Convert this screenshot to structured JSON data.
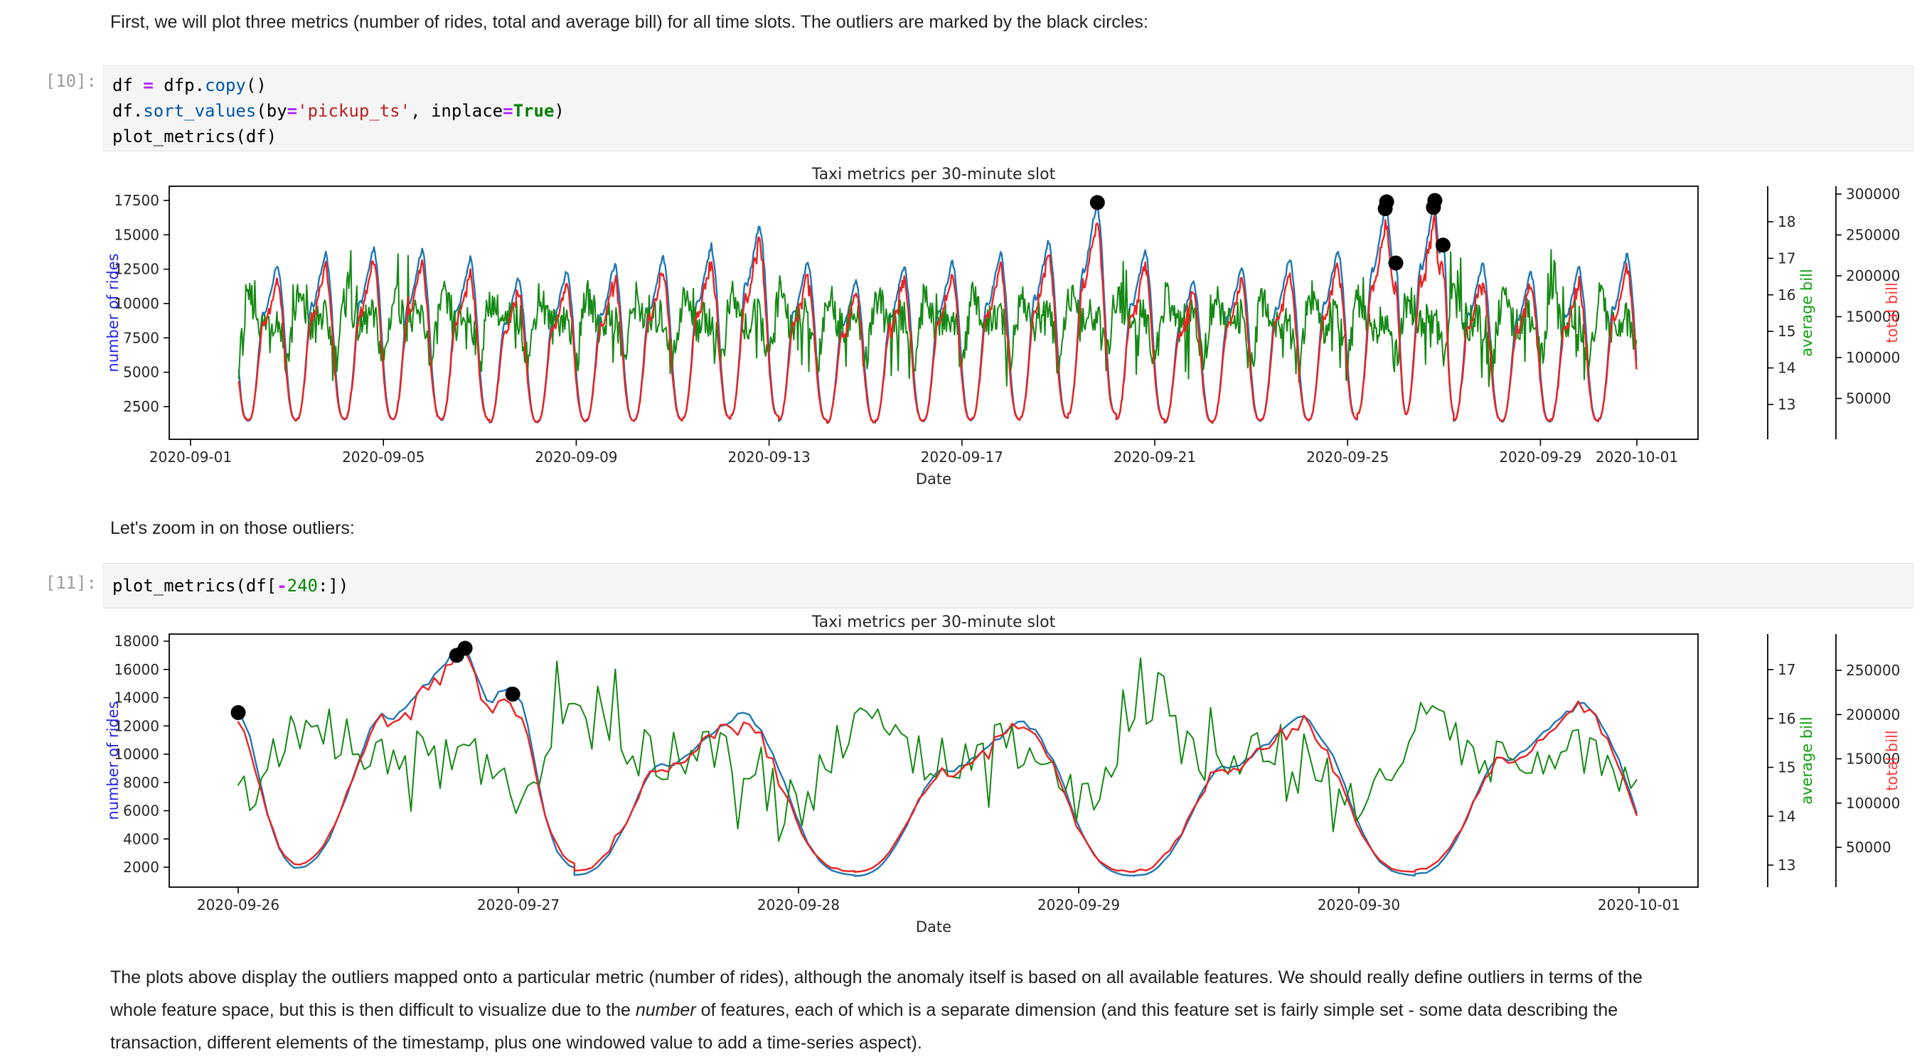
{
  "notebook": {
    "md_intro": "First, we will plot three metrics (number of rides, total and average bill) for all time slots. The outliers are marked by the black circles:",
    "md_zoom": "Let's zoom in on those outliers:",
    "outro": {
      "l1": "The plots above display the outliers mapped onto a particular metric (number of rides), although the anomaly itself is based on all available features. We should really define outliers in terms of the",
      "l2a": "whole feature space, but this is then difficult to visualize due to the ",
      "l2i": "number",
      "l2b": " of features, each of which is a separate dimension (and this feature set is fairly simple set - some data describing the",
      "l3": "transaction, different elements of the timestamp, plus one windowed value to add a time-series aspect)."
    },
    "cells": [
      {
        "prompt": "[10]:",
        "lines": [
          [
            [
              "n",
              "df"
            ],
            [
              "pu",
              " "
            ],
            [
              "op",
              "="
            ],
            [
              "pu",
              " "
            ],
            [
              "n",
              "dfp"
            ],
            [
              "pu",
              "."
            ],
            [
              "pr",
              "copy"
            ],
            [
              "pu",
              "()"
            ]
          ],
          [
            [
              "n",
              "df"
            ],
            [
              "pu",
              "."
            ],
            [
              "pr",
              "sort_values"
            ],
            [
              "pu",
              "("
            ],
            [
              "n",
              "by"
            ],
            [
              "op",
              "="
            ],
            [
              "st",
              "'pickup_ts'"
            ],
            [
              "pu",
              ", "
            ],
            [
              "n",
              "inplace"
            ],
            [
              "op",
              "="
            ],
            [
              "kw",
              "True"
            ],
            [
              "pu",
              ")"
            ]
          ],
          [
            [
              "n",
              "plot_metrics"
            ],
            [
              "pu",
              "("
            ],
            [
              "n",
              "df"
            ],
            [
              "pu",
              ")"
            ]
          ]
        ]
      },
      {
        "prompt": "[11]:",
        "lines": [
          [
            [
              "n",
              "plot_metrics"
            ],
            [
              "pu",
              "("
            ],
            [
              "n",
              "df"
            ],
            [
              "pu",
              "["
            ],
            [
              "op",
              "-"
            ],
            [
              "nu",
              "240"
            ],
            [
              "pu",
              ":])"
            ]
          ]
        ]
      }
    ]
  },
  "chart_data": [
    {
      "type": "line",
      "title": "Taxi metrics per 30-minute slot",
      "xlabel": "Date",
      "legend_position": "none",
      "grid": false,
      "x_ticks": [
        {
          "label": "2020-09-01",
          "day": 1
        },
        {
          "label": "2020-09-05",
          "day": 5
        },
        {
          "label": "2020-09-09",
          "day": 9
        },
        {
          "label": "2020-09-13",
          "day": 13
        },
        {
          "label": "2020-09-17",
          "day": 17
        },
        {
          "label": "2020-09-21",
          "day": 21
        },
        {
          "label": "2020-09-25",
          "day": 25
        },
        {
          "label": "2020-09-29",
          "day": 29
        },
        {
          "label": "2020-10-01",
          "day": 31
        }
      ],
      "axes": {
        "rides": {
          "label": "number of rides",
          "line_color": "#1f77b4",
          "label_color": "#2424ee",
          "ticks": [
            2500,
            5000,
            7500,
            10000,
            12500,
            15000,
            17500
          ],
          "range": [
            1000,
            18600
          ]
        },
        "avg": {
          "label": "average bill",
          "line_color": "#158915",
          "label_color": "#0da10d",
          "ticks": [
            13,
            14,
            15,
            16,
            17,
            18
          ],
          "range": [
            12.5,
            18.5
          ]
        },
        "total": {
          "label": "total bill",
          "line_color": "#ee2222",
          "label_color": "#ff3b3b",
          "ticks": [
            50000,
            100000,
            150000,
            200000,
            250000,
            300000
          ],
          "range": [
            10000,
            310000
          ]
        }
      },
      "window_days": [
        2,
        31
      ],
      "outliers_day_value": [
        [
          19.81,
          17350
        ],
        [
          25.78,
          16900
        ],
        [
          25.81,
          17400
        ],
        [
          26.0,
          12950
        ],
        [
          26.78,
          17000
        ],
        [
          26.81,
          17500
        ],
        [
          26.98,
          14250
        ]
      ]
    },
    {
      "type": "line",
      "title": "Taxi metrics per 30-minute slot",
      "xlabel": "Date",
      "legend_position": "none",
      "grid": false,
      "x_ticks": [
        {
          "label": "2020-09-26",
          "day": 26
        },
        {
          "label": "2020-09-27",
          "day": 27
        },
        {
          "label": "2020-09-28",
          "day": 28
        },
        {
          "label": "2020-09-29",
          "day": 29
        },
        {
          "label": "2020-09-30",
          "day": 30
        },
        {
          "label": "2020-10-01",
          "day": 31
        }
      ],
      "axes": {
        "rides": {
          "label": "number of rides",
          "line_color": "#1f77b4",
          "label_color": "#2424ee",
          "ticks": [
            2000,
            4000,
            6000,
            8000,
            10000,
            12000,
            14000,
            16000,
            18000
          ],
          "range": [
            800,
            18800
          ]
        },
        "avg": {
          "label": "average bill",
          "line_color": "#158915",
          "label_color": "#0da10d",
          "ticks": [
            13,
            14,
            15,
            16,
            17
          ],
          "range": [
            12.6,
            17.7
          ]
        },
        "total": {
          "label": "total bill",
          "line_color": "#ee2222",
          "label_color": "#ff3b3b",
          "ticks": [
            50000,
            100000,
            150000,
            200000,
            250000
          ],
          "range": [
            8000,
            272000
          ]
        }
      },
      "window_days": [
        26,
        31
      ],
      "outliers_day_value": [
        [
          26.0,
          12950
        ],
        [
          26.78,
          17000
        ],
        [
          26.81,
          17500
        ],
        [
          26.98,
          14250
        ]
      ]
    }
  ],
  "series_model": {
    "description": "Three series per chart: number of rides (blue, left axis), average bill (green, right axis 1), total bill = rides x average bill (red, right axis 2). 30-minute slots.",
    "slot_per_day": 48,
    "first_peak_date": "2020-09-02",
    "rides_daily_peaks": [
      12900,
      13700,
      14100,
      14000,
      13300,
      11800,
      12400,
      12900,
      13400,
      14200,
      15800,
      13100,
      11600,
      12700,
      13100,
      13700,
      14600,
      17350,
      13900,
      11700,
      12700,
      13300,
      13900,
      17400,
      17500,
      12900,
      12300,
      12600,
      13600
    ],
    "rides_day_profile": [
      [
        0.0,
        0.4
      ],
      [
        0.04,
        0.27
      ],
      [
        0.08,
        0.18
      ],
      [
        0.12,
        0.135
      ],
      [
        0.16,
        0.118
      ],
      [
        0.2,
        0.112
      ],
      [
        0.24,
        0.118
      ],
      [
        0.28,
        0.15
      ],
      [
        0.33,
        0.24
      ],
      [
        0.38,
        0.38
      ],
      [
        0.42,
        0.52
      ],
      [
        0.46,
        0.64
      ],
      [
        0.5,
        0.73
      ],
      [
        0.54,
        0.71
      ],
      [
        0.58,
        0.74
      ],
      [
        0.62,
        0.79
      ],
      [
        0.66,
        0.84
      ],
      [
        0.7,
        0.89
      ],
      [
        0.74,
        0.94
      ],
      [
        0.78,
        0.985
      ],
      [
        0.81,
        1.0
      ],
      [
        0.84,
        0.955
      ],
      [
        0.88,
        0.86
      ],
      [
        0.92,
        0.74
      ],
      [
        0.96,
        0.57
      ],
      [
        1.0,
        0.4
      ],
      [
        1.04,
        0.27
      ],
      [
        1.08,
        0.18
      ],
      [
        1.12,
        0.135
      ],
      [
        1.16,
        0.118
      ],
      [
        1.2,
        0.112
      ]
    ],
    "outlier_day_tails": {
      "25": [
        [
          0.84,
          0.93
        ],
        [
          0.88,
          0.83
        ],
        [
          0.92,
          0.77
        ],
        [
          0.96,
          0.75
        ],
        [
          1.0,
          0.745
        ],
        [
          1.03,
          0.7
        ],
        [
          1.06,
          0.55
        ],
        [
          1.1,
          0.35
        ],
        [
          1.14,
          0.2
        ],
        [
          1.18,
          0.13
        ],
        [
          1.2,
          0.112
        ]
      ],
      "26": [
        [
          0.84,
          0.92
        ],
        [
          0.88,
          0.8
        ],
        [
          0.9,
          0.78
        ],
        [
          0.93,
          0.83
        ],
        [
          0.96,
          0.84
        ],
        [
          1.0,
          0.815
        ],
        [
          1.03,
          0.72
        ],
        [
          1.06,
          0.52
        ],
        [
          1.1,
          0.3
        ],
        [
          1.14,
          0.17
        ],
        [
          1.18,
          0.12
        ],
        [
          1.2,
          0.112
        ]
      ]
    },
    "avg_bill_profile": [
      [
        0.0,
        14.2
      ],
      [
        0.05,
        14.5
      ],
      [
        0.1,
        15.0
      ],
      [
        0.15,
        15.5
      ],
      [
        0.2,
        15.8
      ],
      [
        0.25,
        15.9
      ],
      [
        0.3,
        15.8
      ],
      [
        0.35,
        15.6
      ],
      [
        0.4,
        15.4
      ],
      [
        0.45,
        15.2
      ],
      [
        0.5,
        15.1
      ],
      [
        0.55,
        15.2
      ],
      [
        0.6,
        15.3
      ],
      [
        0.65,
        15.35
      ],
      [
        0.7,
        15.4
      ],
      [
        0.75,
        15.4
      ],
      [
        0.8,
        15.35
      ],
      [
        0.85,
        15.2
      ],
      [
        0.9,
        14.9
      ],
      [
        0.95,
        14.5
      ],
      [
        1.0,
        14.2
      ]
    ],
    "avg_bill_noise": 0.6,
    "avg_bill_day_spike_max": [
      16.6,
      16.3,
      17.9,
      17.3,
      16.1,
      15.6,
      16.4,
      16.1,
      16.5,
      16.3,
      16.1,
      16.6,
      15.9,
      16.1,
      16.4,
      16.1,
      15.9,
      16.3,
      17.1,
      16.1,
      16.4,
      16.0,
      16.2,
      16.5,
      16.0,
      17.5,
      16.3,
      17.3,
      16.2
    ],
    "total_rule": "total_bill[t] = rides[t] * avg_bill[t]"
  }
}
